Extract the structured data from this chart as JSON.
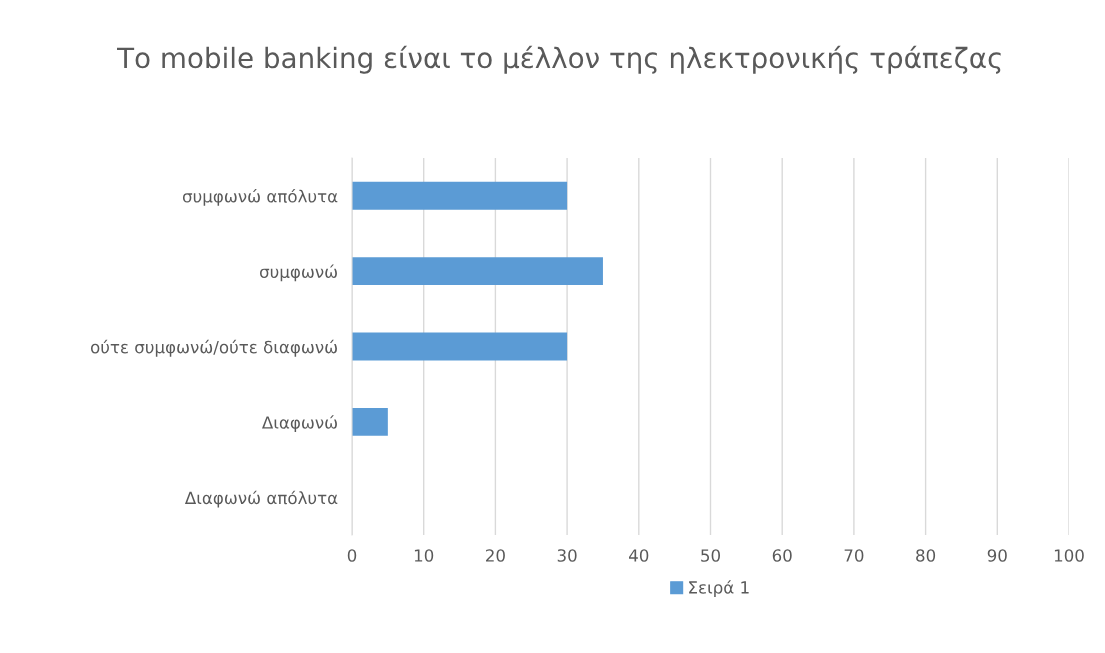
{
  "chart_data": {
    "type": "bar",
    "orientation": "horizontal",
    "title": "Το mobile banking είναι το μέλλον της ηλεκτρονικής τράπεζας",
    "categories": [
      "συμφωνώ απόλυτα",
      "συμφωνώ",
      "ούτε συμφωνώ/ούτε διαφωνώ",
      "Διαφωνώ",
      "Διαφωνώ απόλυτα"
    ],
    "series": [
      {
        "name": "Σειρά 1",
        "color": "#5b9bd5",
        "values": [
          30,
          35,
          30,
          5,
          0
        ]
      }
    ],
    "xlim": [
      0,
      100
    ],
    "xticks": [
      0,
      10,
      20,
      30,
      40,
      50,
      60,
      70,
      80,
      90,
      100
    ],
    "grid": "x",
    "legend": "bottom"
  }
}
